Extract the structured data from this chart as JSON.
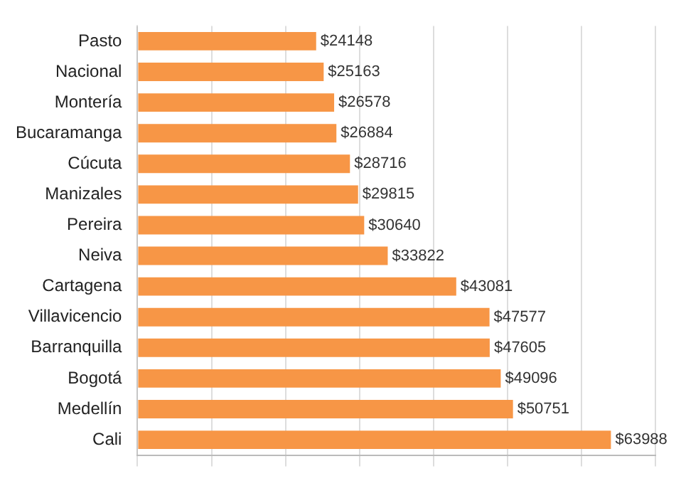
{
  "chart_data": {
    "type": "bar",
    "orientation": "horizontal",
    "categories": [
      "Pasto",
      "Nacional",
      "Montería",
      "Bucaramanga",
      "Cúcuta",
      "Manizales",
      "Pereira",
      "Neiva",
      "Cartagena",
      "Villavicencio",
      "Barranquilla",
      "Bogotá",
      "Medellín",
      "Cali"
    ],
    "values": [
      24148,
      25163,
      26578,
      26884,
      28716,
      29815,
      30640,
      33822,
      43081,
      47577,
      47605,
      49096,
      50751,
      63988
    ],
    "value_labels": [
      "$24148",
      "$25163",
      "$26578",
      "$26884",
      "$28716",
      "$29815",
      "$30640",
      "$33822",
      "$43081",
      "$47577",
      "$47605",
      "$49096",
      "$50751",
      "$63988"
    ],
    "color": "#f79646",
    "grid": "x",
    "tick_labels": "y",
    "legend": false
  }
}
